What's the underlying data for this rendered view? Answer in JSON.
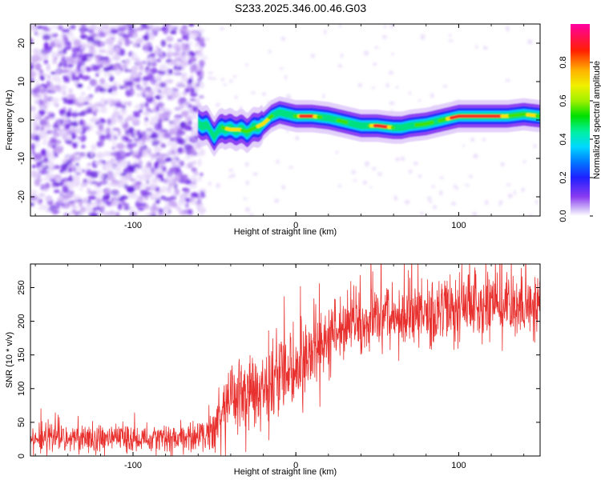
{
  "title": "S233.2025.346.00.46.G03",
  "chart_data": [
    {
      "type": "heatmap",
      "name": "spectrogram",
      "xlabel": "Height of straight line (km)",
      "ylabel": "Frequency (Hz)",
      "xlim": [
        -163,
        150
      ],
      "ylim": [
        -25,
        25
      ],
      "xticks": [
        -100,
        0,
        100
      ],
      "xtick_labels": [
        "-100",
        "0",
        "100"
      ],
      "yticks": [
        -20,
        -10,
        0,
        10,
        20
      ],
      "ytick_labels": [
        "-20",
        "-10",
        "0",
        "10",
        "20"
      ],
      "noise_region_x": [
        -163,
        -60
      ],
      "signal_track": {
        "x": [
          -60,
          -55,
          -50,
          -45,
          -40,
          -35,
          -30,
          -25,
          -20,
          -15,
          -10,
          -5,
          0,
          10,
          20,
          30,
          40,
          50,
          60,
          65,
          70,
          80,
          90,
          100,
          110,
          120,
          130,
          140,
          150
        ],
        "freq_hz": [
          -1,
          -1.5,
          -4,
          -2,
          -2.5,
          -2.5,
          -3,
          -2,
          -1,
          1,
          2,
          1.5,
          1,
          1,
          0.5,
          -0.5,
          -1.5,
          -1.5,
          -2,
          -2,
          -1.5,
          -1,
          0,
          1,
          1,
          1,
          1,
          1.5,
          1
        ]
      },
      "colorbar": {
        "label": "Normalized spectral amplitude",
        "ticks": [
          0.0,
          0.2,
          0.4,
          0.6,
          0.8
        ],
        "tick_labels": [
          "0.0",
          "0.2",
          "0.4",
          "0.6",
          "0.8"
        ],
        "range": [
          0,
          1
        ]
      }
    },
    {
      "type": "line",
      "name": "snr",
      "xlabel": "Height of straight line (km)",
      "ylabel": "SNR (10 * v/v)",
      "xlim": [
        -163,
        150
      ],
      "ylim": [
        0,
        285
      ],
      "xticks": [
        -100,
        0,
        100
      ],
      "xtick_labels": [
        "-100",
        "0",
        "100"
      ],
      "yticks": [
        0,
        50,
        100,
        150,
        200,
        250
      ],
      "ytick_labels": [
        "0",
        "50",
        "100",
        "150",
        "200",
        "250"
      ],
      "color": "#e8312e",
      "trend": {
        "x": [
          -163,
          -120,
          -80,
          -55,
          -50,
          -45,
          -40,
          -30,
          -20,
          -10,
          0,
          10,
          20,
          30,
          40,
          60,
          80,
          100,
          120,
          140,
          150
        ],
        "y": [
          25,
          25,
          25,
          28,
          40,
          65,
          85,
          95,
          100,
          115,
          130,
          150,
          175,
          190,
          200,
          208,
          212,
          218,
          222,
          225,
          225
        ]
      },
      "noise_amplitude": {
        "x": [
          -163,
          -55,
          -45,
          0,
          20,
          150
        ],
        "y": [
          22,
          22,
          55,
          60,
          50,
          50
        ]
      },
      "n_samples": 1700
    }
  ]
}
